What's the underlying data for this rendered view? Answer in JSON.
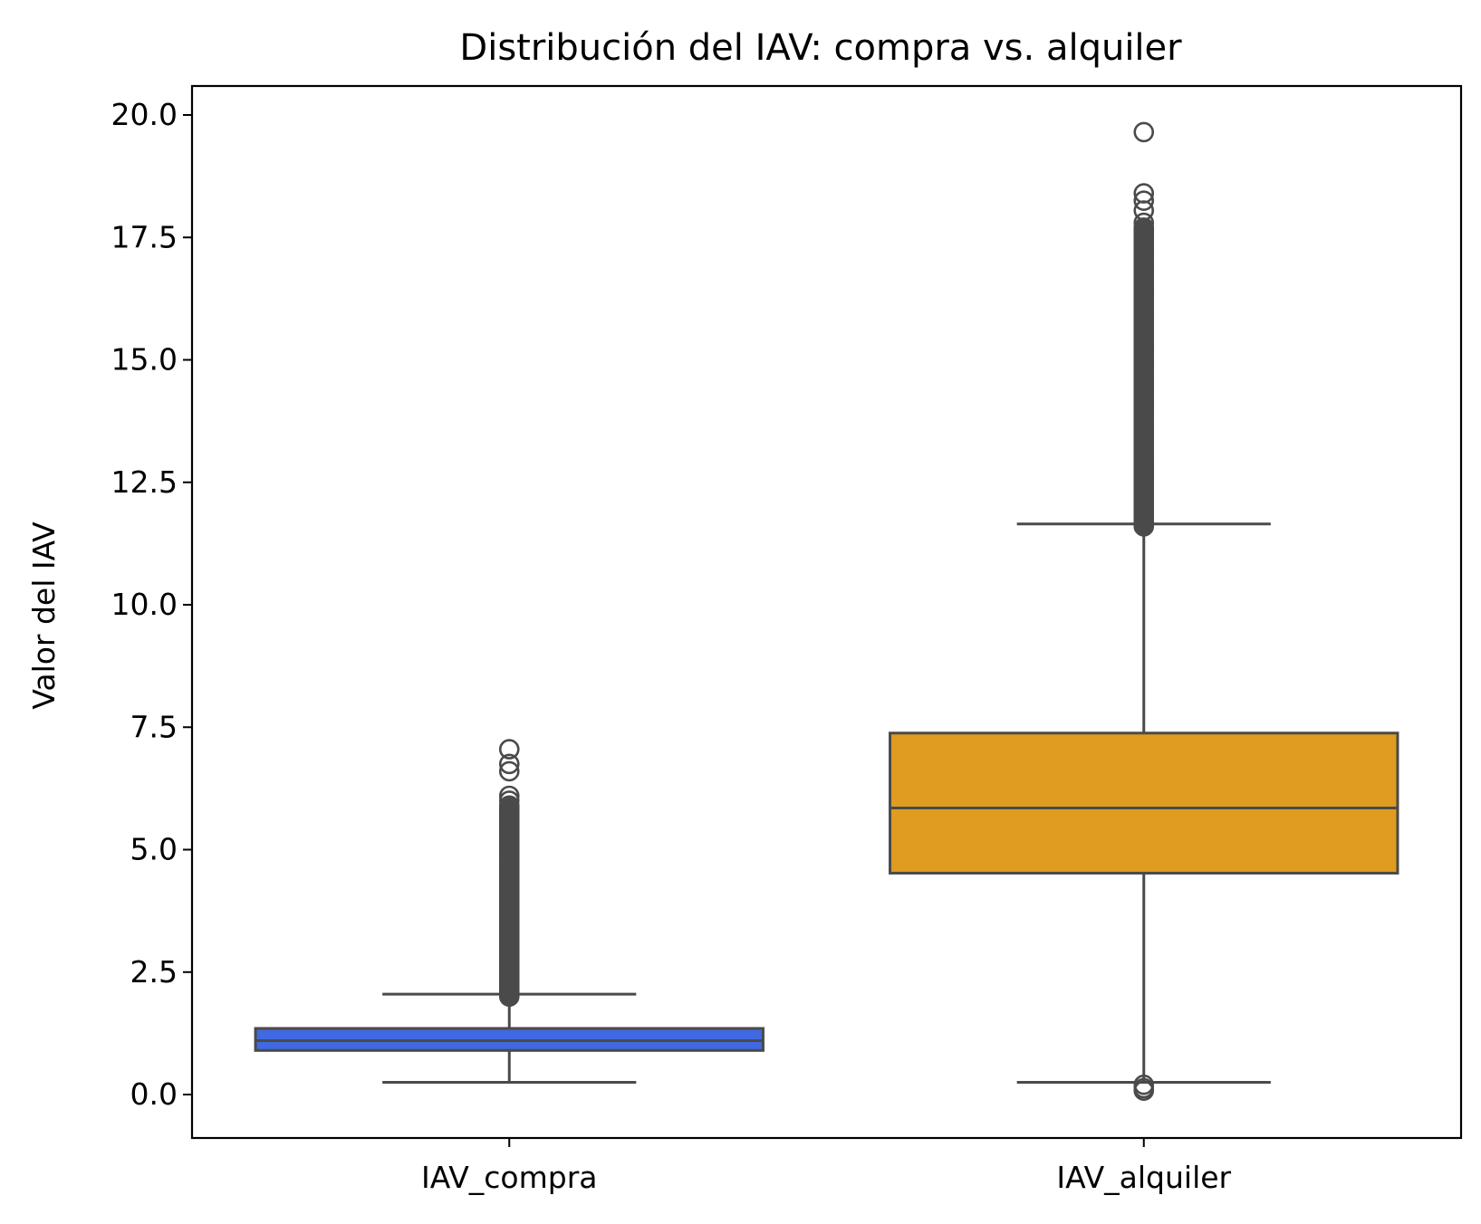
{
  "chart_data": {
    "type": "box",
    "title": "Distribución del IAV: compra vs. alquiler",
    "xlabel": "",
    "ylabel": "Valor del IAV",
    "ylim": [
      -0.85,
      20.6
    ],
    "yticks": [
      "0.0",
      "2.5",
      "5.0",
      "7.5",
      "10.0",
      "12.5",
      "15.0",
      "17.5",
      "20.0"
    ],
    "grid": false,
    "categories": [
      "IAV_compra",
      "IAV_alquiler"
    ],
    "boxes": [
      {
        "category": "IAV_compra",
        "color": "#4169e1",
        "whisker_low": 0.25,
        "q1": 0.9,
        "median": 1.1,
        "q3": 1.35,
        "whisker_high": 2.05,
        "outliers_band": [
          2.0,
          5.9
        ],
        "outliers": [
          6.0,
          6.1,
          6.6,
          6.75,
          7.05
        ]
      },
      {
        "category": "IAV_alquiler",
        "color": "#e09c20",
        "whisker_low": 0.25,
        "q1": 4.52,
        "median": 5.85,
        "q3": 7.38,
        "whisker_high": 11.65,
        "outliers_band": [
          11.6,
          17.7
        ],
        "outliers": [
          0.08,
          0.13,
          0.2,
          17.8,
          18.05,
          18.25,
          18.4,
          19.65
        ]
      }
    ]
  }
}
